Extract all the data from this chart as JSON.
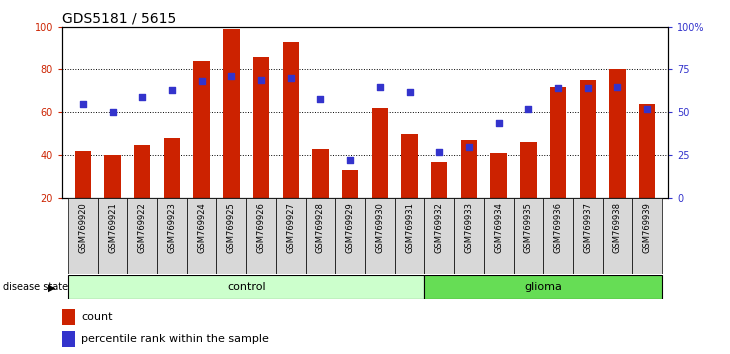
{
  "title": "GDS5181 / 5615",
  "samples": [
    "GSM769920",
    "GSM769921",
    "GSM769922",
    "GSM769923",
    "GSM769924",
    "GSM769925",
    "GSM769926",
    "GSM769927",
    "GSM769928",
    "GSM769929",
    "GSM769930",
    "GSM769931",
    "GSM769932",
    "GSM769933",
    "GSM769934",
    "GSM769935",
    "GSM769936",
    "GSM769937",
    "GSM769938",
    "GSM769939"
  ],
  "counts": [
    42,
    40,
    45,
    48,
    84,
    99,
    86,
    93,
    43,
    33,
    62,
    50,
    37,
    47,
    41,
    46,
    72,
    75,
    80,
    64
  ],
  "percentiles": [
    55,
    50,
    59,
    63,
    68,
    71,
    69,
    70,
    58,
    22,
    65,
    62,
    27,
    30,
    44,
    52,
    64,
    64,
    65,
    52
  ],
  "control_count": 12,
  "bar_color": "#cc2200",
  "dot_color": "#3333cc",
  "control_color": "#ccffcc",
  "glioma_color": "#66dd55",
  "xtick_bg": "#d8d8d8",
  "ylim_left": [
    20,
    100
  ],
  "left_yticks": [
    20,
    40,
    60,
    80,
    100
  ],
  "right_yticks_values": [
    0,
    25,
    50,
    75,
    100
  ],
  "right_yticklabels": [
    "0",
    "25",
    "50",
    "75",
    "100%"
  ]
}
